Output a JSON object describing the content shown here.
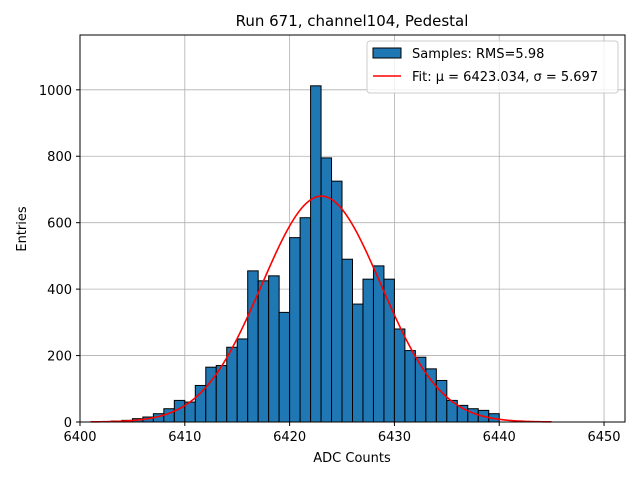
{
  "chart_data": {
    "type": "bar",
    "title": "Run 671, channel104, Pedestal",
    "xlabel": "ADC Counts",
    "ylabel": "Entries",
    "xlim": [
      6400,
      6452
    ],
    "ylim": [
      0,
      1165
    ],
    "xticks": [
      6400,
      6410,
      6420,
      6430,
      6440,
      6450
    ],
    "yticks": [
      0,
      200,
      400,
      600,
      800,
      1000
    ],
    "grid": true,
    "legend_position": "top-right",
    "bar_color": "#1f77b4",
    "fit_color": "#ff0000",
    "histogram": {
      "name": "Samples: RMS=5.98",
      "bin_width": 1,
      "bins": [
        {
          "x": 6403,
          "count": 3
        },
        {
          "x": 6404,
          "count": 5
        },
        {
          "x": 6405,
          "count": 10
        },
        {
          "x": 6406,
          "count": 15
        },
        {
          "x": 6407,
          "count": 25
        },
        {
          "x": 6408,
          "count": 40
        },
        {
          "x": 6409,
          "count": 65
        },
        {
          "x": 6410,
          "count": 60
        },
        {
          "x": 6411,
          "count": 110
        },
        {
          "x": 6412,
          "count": 165
        },
        {
          "x": 6413,
          "count": 170
        },
        {
          "x": 6414,
          "count": 225
        },
        {
          "x": 6415,
          "count": 250
        },
        {
          "x": 6416,
          "count": 455
        },
        {
          "x": 6417,
          "count": 425
        },
        {
          "x": 6418,
          "count": 440
        },
        {
          "x": 6419,
          "count": 330
        },
        {
          "x": 6420,
          "count": 555
        },
        {
          "x": 6421,
          "count": 615
        },
        {
          "x": 6422,
          "count": 1012
        },
        {
          "x": 6423,
          "count": 795
        },
        {
          "x": 6424,
          "count": 725
        },
        {
          "x": 6425,
          "count": 490
        },
        {
          "x": 6426,
          "count": 355
        },
        {
          "x": 6427,
          "count": 430
        },
        {
          "x": 6428,
          "count": 470
        },
        {
          "x": 6429,
          "count": 430
        },
        {
          "x": 6430,
          "count": 280
        },
        {
          "x": 6431,
          "count": 215
        },
        {
          "x": 6432,
          "count": 195
        },
        {
          "x": 6433,
          "count": 160
        },
        {
          "x": 6434,
          "count": 125
        },
        {
          "x": 6435,
          "count": 65
        },
        {
          "x": 6436,
          "count": 50
        },
        {
          "x": 6437,
          "count": 40
        },
        {
          "x": 6438,
          "count": 35
        },
        {
          "x": 6439,
          "count": 25
        }
      ]
    },
    "fit": {
      "name": "Fit: μ = 6423.034, σ = 5.697",
      "mu": 6423.034,
      "sigma": 5.697,
      "amplitude": 680,
      "x_range": [
        6401,
        6445
      ]
    }
  }
}
